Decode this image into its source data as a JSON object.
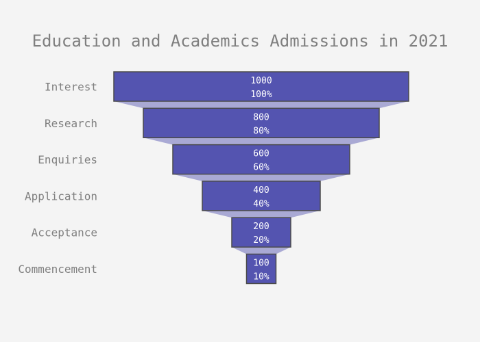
{
  "chart_data": {
    "type": "funnel",
    "title": "Education and Academics Admissions in 2021",
    "stages": [
      "Interest",
      "Research",
      "Enquiries",
      "Application",
      "Acceptance",
      "Commencement"
    ],
    "values": [
      1000,
      800,
      600,
      400,
      200,
      100
    ],
    "percent_labels": [
      "100%",
      "80%",
      "60%",
      "40%",
      "20%",
      "10%"
    ],
    "colors": {
      "bar": "#5454b0",
      "bar_border": "#4a4a4a",
      "connector": "#a9a9d4",
      "text": "#7f7f7f",
      "inner_text": "#ffffff",
      "background": "#f4f4f4"
    }
  }
}
